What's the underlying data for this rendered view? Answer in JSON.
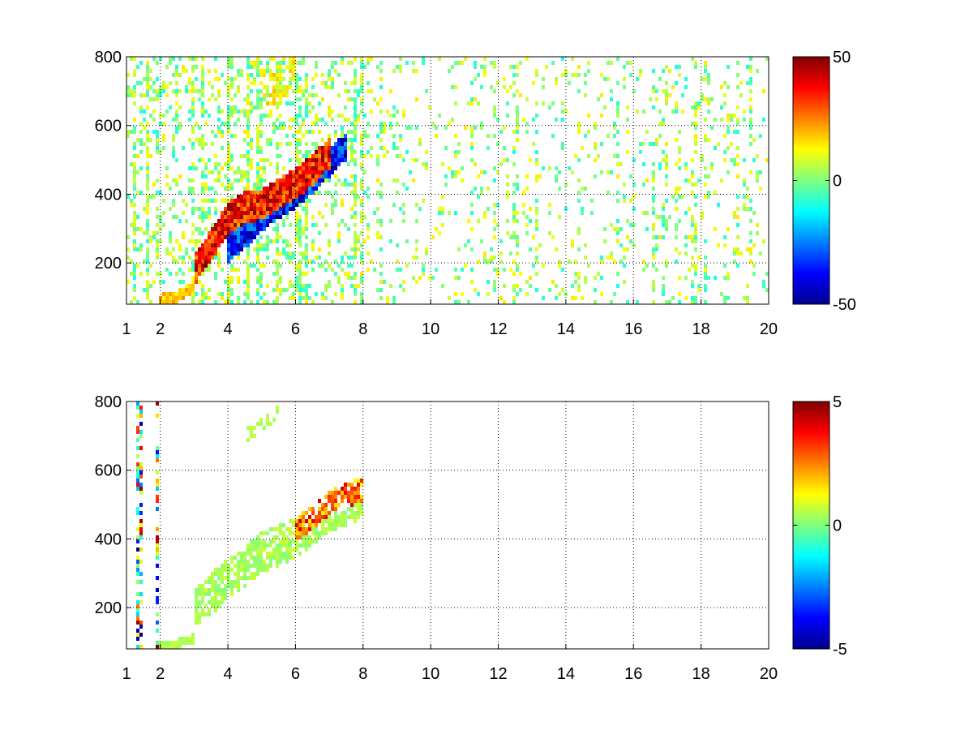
{
  "chart_data": [
    {
      "type": "heatmap",
      "title": "",
      "xlabel": "",
      "ylabel": "",
      "xlim": [
        1,
        20
      ],
      "ylim": [
        80,
        800
      ],
      "x_ticks": [
        "1",
        "2",
        "4",
        "6",
        "8",
        "10",
        "12",
        "14",
        "16",
        "18",
        "20"
      ],
      "y_ticks": [
        "200",
        "400",
        "600",
        "800"
      ],
      "grid": true,
      "colormap": "jet",
      "colorbar": {
        "min": -50,
        "max": 50,
        "ticks": [
          "50",
          "0",
          "-50"
        ]
      },
      "features": {
        "ridge_positive": [
          [
            3.0,
            180
          ],
          [
            3.5,
            250
          ],
          [
            4.0,
            330
          ],
          [
            4.5,
            360
          ],
          [
            5.0,
            370
          ],
          [
            5.5,
            400
          ],
          [
            6.0,
            430
          ],
          [
            6.5,
            470
          ],
          [
            7.0,
            520
          ]
        ],
        "ridge_negative": [
          [
            4.0,
            240
          ],
          [
            4.5,
            280
          ],
          [
            5.0,
            330
          ],
          [
            5.5,
            370
          ],
          [
            6.0,
            400
          ],
          [
            6.5,
            440
          ],
          [
            7.0,
            490
          ],
          [
            7.5,
            540
          ]
        ],
        "low_arm": [
          [
            2.0,
            90
          ],
          [
            2.5,
            100
          ],
          [
            3.0,
            130
          ]
        ],
        "upper_blob": [
          [
            5.0,
            720
          ],
          [
            5.5,
            700
          ],
          [
            6.0,
            760
          ]
        ]
      }
    },
    {
      "type": "heatmap",
      "title": "",
      "xlabel": "",
      "ylabel": "",
      "xlim": [
        1,
        20
      ],
      "ylim": [
        80,
        800
      ],
      "x_ticks": [
        "1",
        "2",
        "4",
        "6",
        "8",
        "10",
        "12",
        "14",
        "16",
        "18",
        "20"
      ],
      "y_ticks": [
        "200",
        "400",
        "600",
        "800"
      ],
      "grid": true,
      "colormap": "jet",
      "colorbar": {
        "min": -5,
        "max": 5,
        "ticks": [
          "5",
          "0",
          "-5"
        ]
      },
      "features": {
        "band_center": [
          [
            3.0,
            200
          ],
          [
            3.5,
            240
          ],
          [
            4.0,
            280
          ],
          [
            4.5,
            320
          ],
          [
            5.0,
            360
          ],
          [
            5.5,
            380
          ],
          [
            6.0,
            400
          ],
          [
            6.5,
            440
          ],
          [
            7.0,
            480
          ],
          [
            7.5,
            500
          ],
          [
            8.0,
            520
          ]
        ],
        "low_arm": [
          [
            2.0,
            90
          ],
          [
            2.5,
            95
          ],
          [
            3.0,
            110
          ]
        ],
        "upper_arm": [
          [
            4.5,
            700
          ],
          [
            5.0,
            730
          ],
          [
            5.5,
            770
          ]
        ]
      }
    }
  ]
}
